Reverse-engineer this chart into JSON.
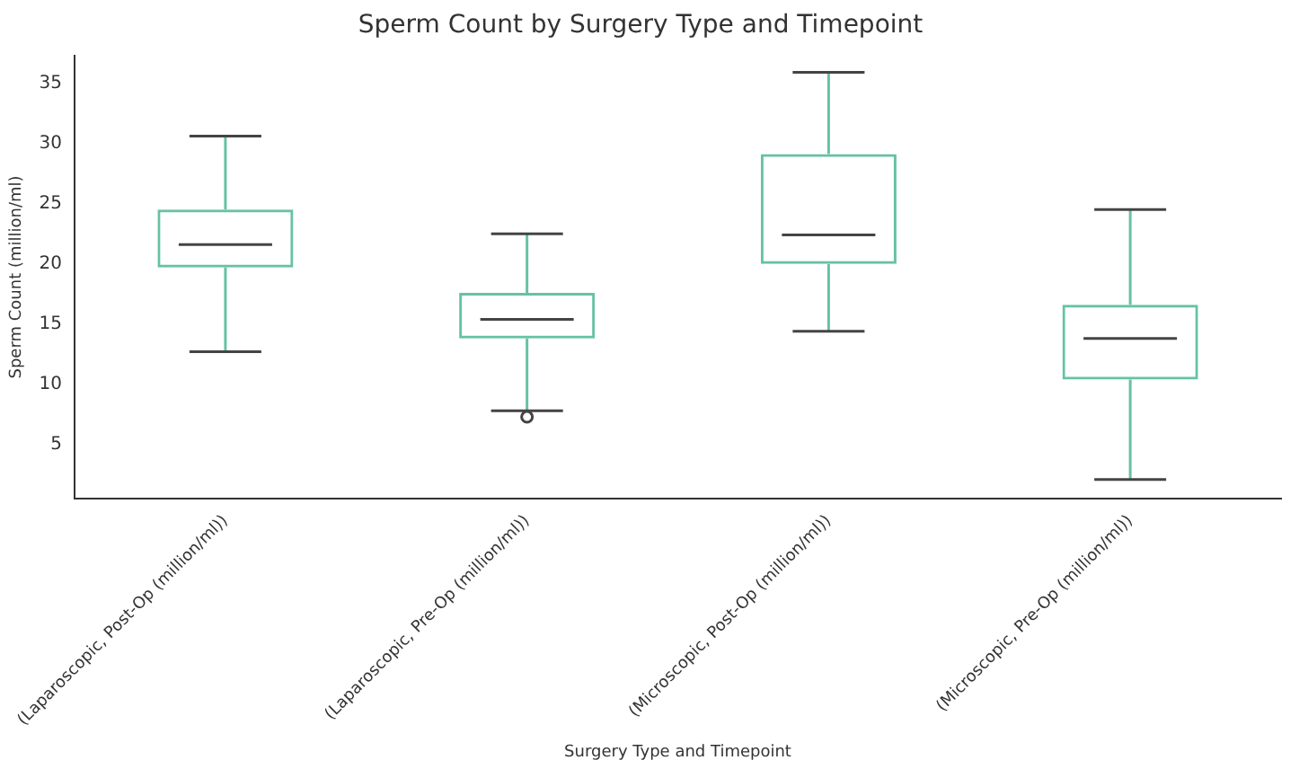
{
  "chart_data": {
    "type": "box",
    "title": "Sperm Count by Surgery Type and Timepoint",
    "xlabel": "Surgery Type and Timepoint",
    "ylabel": "Sperm Count (million/ml)",
    "categories": [
      "(Laparoscopic, Post-Op (million/ml))",
      "(Laparoscopic, Pre-Op (million/ml))",
      "(Microscopic, Post-Op (million/ml))",
      "(Microscopic, Pre-Op (million/ml))"
    ],
    "color": "#66c2a5",
    "boxes": [
      {
        "low": 12.7,
        "q1": 19.7,
        "median": 21.6,
        "q3": 24.5,
        "high": 30.6
      },
      {
        "low": 7.8,
        "q1": 13.8,
        "median": 15.4,
        "q3": 17.6,
        "high": 22.5,
        "outliers": [
          7.3
        ]
      },
      {
        "low": 14.4,
        "q1": 20.0,
        "median": 22.4,
        "q3": 29.1,
        "high": 35.9
      },
      {
        "low": 2.1,
        "q1": 10.4,
        "median": 13.8,
        "q3": 16.6,
        "high": 24.5
      }
    ],
    "ylim": [
      0.5,
      37.3
    ],
    "yticks": [
      5,
      10,
      15,
      20,
      25,
      30,
      35
    ],
    "grid": false,
    "legend": false
  }
}
